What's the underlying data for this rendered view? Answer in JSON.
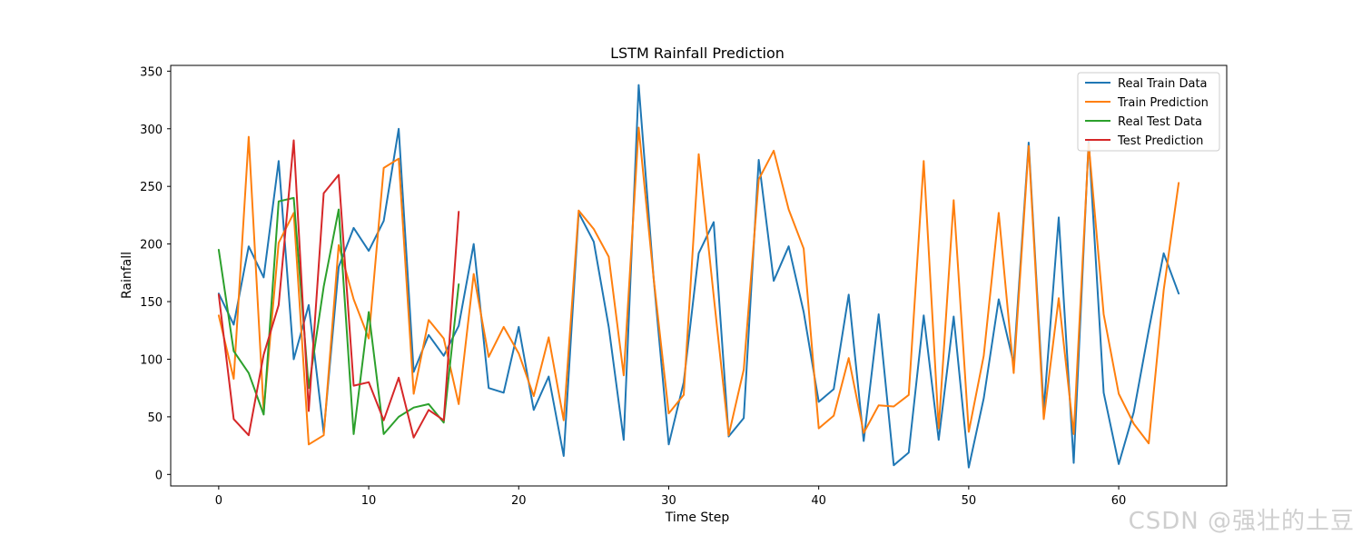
{
  "chart_data": {
    "type": "line",
    "title": "LSTM Rainfall Prediction",
    "xlabel": "Time Step",
    "ylabel": "Rainfall",
    "xlim": [
      -3.2,
      67.2
    ],
    "ylim": [
      -10,
      355
    ],
    "xticks": [
      0,
      10,
      20,
      30,
      40,
      50,
      60
    ],
    "yticks": [
      0,
      50,
      100,
      150,
      200,
      250,
      300,
      350
    ],
    "grid": false,
    "legend_position": "top-right",
    "series": [
      {
        "name": "Real Train Data",
        "color": "#1f77b4",
        "x": [
          0,
          1,
          2,
          3,
          4,
          5,
          6,
          7,
          8,
          9,
          10,
          11,
          12,
          13,
          14,
          15,
          16,
          17,
          18,
          19,
          20,
          21,
          22,
          23,
          24,
          25,
          26,
          27,
          28,
          29,
          30,
          31,
          32,
          33,
          34,
          35,
          36,
          37,
          38,
          39,
          40,
          41,
          42,
          43,
          44,
          45,
          46,
          47,
          48,
          49,
          50,
          51,
          52,
          53,
          54,
          55,
          56,
          57,
          58,
          59,
          60,
          61,
          62,
          63,
          64
        ],
        "values": [
          157,
          130,
          198,
          171,
          272,
          100,
          147,
          36,
          180,
          214,
          194,
          220,
          300,
          89,
          121,
          103,
          129,
          200,
          75,
          71,
          128,
          56,
          85,
          16,
          227,
          202,
          128,
          30,
          338,
          170,
          26,
          80,
          192,
          219,
          33,
          49,
          273,
          168,
          198,
          141,
          63,
          74,
          156,
          29,
          139,
          8,
          19,
          138,
          30,
          137,
          6,
          66,
          152,
          96,
          288,
          56,
          223,
          10,
          290,
          71,
          9,
          54,
          125,
          192,
          157
        ]
      },
      {
        "name": "Train Prediction",
        "color": "#ff7f0e",
        "x": [
          0,
          1,
          2,
          3,
          4,
          5,
          6,
          7,
          8,
          9,
          10,
          11,
          12,
          13,
          14,
          15,
          16,
          17,
          18,
          19,
          20,
          21,
          22,
          23,
          24,
          25,
          26,
          27,
          28,
          29,
          30,
          31,
          32,
          33,
          34,
          35,
          36,
          37,
          38,
          39,
          40,
          41,
          42,
          43,
          44,
          45,
          46,
          47,
          48,
          49,
          50,
          51,
          52,
          53,
          54,
          55,
          56,
          57,
          58,
          59,
          60,
          61,
          62,
          63,
          64
        ],
        "values": [
          138,
          83,
          293,
          55,
          201,
          227,
          26,
          34,
          199,
          152,
          118,
          266,
          274,
          70,
          134,
          118,
          61,
          174,
          102,
          128,
          105,
          68,
          119,
          47,
          229,
          213,
          189,
          86,
          301,
          170,
          53,
          69,
          278,
          155,
          34,
          91,
          256,
          281,
          230,
          196,
          40,
          51,
          101,
          36,
          60,
          59,
          69,
          272,
          40,
          238,
          37,
          103,
          227,
          88,
          285,
          48,
          153,
          35,
          287,
          139,
          70,
          44,
          27,
          160,
          253
        ]
      },
      {
        "name": "Real Test Data",
        "color": "#2ca02c",
        "x": [
          0,
          1,
          2,
          3,
          4,
          5,
          6,
          7,
          8,
          9,
          10,
          11,
          12,
          13,
          14,
          15,
          16
        ],
        "values": [
          195,
          107,
          88,
          52,
          237,
          240,
          75,
          163,
          230,
          35,
          141,
          35,
          50,
          58,
          61,
          45,
          165
        ]
      },
      {
        "name": "Test Prediction",
        "color": "#d62728",
        "x": [
          0,
          1,
          2,
          3,
          4,
          5,
          6,
          7,
          8,
          9,
          10,
          11,
          12,
          13,
          14,
          15,
          16
        ],
        "values": [
          156,
          48,
          34,
          104,
          147,
          290,
          55,
          244,
          260,
          77,
          80,
          47,
          84,
          32,
          56,
          47,
          228
        ]
      }
    ]
  },
  "watermark": "CSDN @强壮的土豆"
}
